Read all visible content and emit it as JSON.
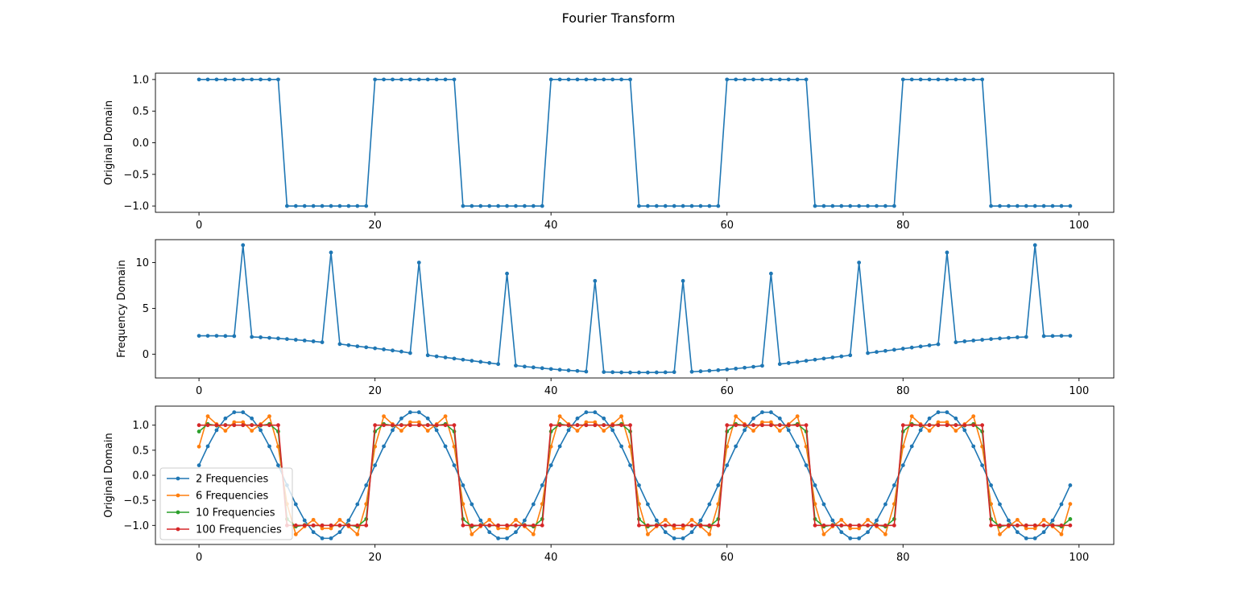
{
  "figure": {
    "title": "Fourier Transform"
  },
  "chart_data": [
    {
      "type": "line",
      "ylabel": "Original Domain",
      "xlim": [
        -4.95,
        103.95
      ],
      "ylim": [
        -1.1,
        1.1
      ],
      "xticks": [
        0,
        20,
        40,
        60,
        80,
        100
      ],
      "xtick_labels": [
        "0",
        "20",
        "40",
        "60",
        "80",
        "100"
      ],
      "yticks": [
        1.0,
        0.5,
        0.0,
        -0.5,
        -1.0
      ],
      "ytick_labels": [
        "1.0",
        "0.5",
        "0.0",
        "−0.5",
        "−1.0"
      ],
      "legend": false,
      "series": [
        {
          "color": "#1f77b4",
          "x_start": 0,
          "x_step": 1,
          "period": 20,
          "duty": 10,
          "high": 1.0,
          "low": -1.0,
          "count": 100
        }
      ]
    },
    {
      "type": "line",
      "ylabel": "Frequency Domain",
      "xlim": [
        -4.95,
        103.95
      ],
      "ylim": [
        -2.6,
        12.5
      ],
      "xticks": [
        0,
        20,
        40,
        60,
        80,
        100
      ],
      "xtick_labels": [
        "0",
        "20",
        "40",
        "60",
        "80",
        "100"
      ],
      "yticks": [
        10,
        5,
        0
      ],
      "ytick_labels": [
        "10",
        "5",
        "0"
      ],
      "legend": false,
      "series": [
        {
          "color": "#1f77b4",
          "values": [
            2.0,
            2.0,
            2.0,
            1.98,
            1.97,
            11.9,
            1.88,
            1.84,
            1.78,
            1.72,
            1.65,
            1.57,
            1.49,
            1.4,
            1.3,
            11.1,
            1.1,
            0.98,
            0.86,
            0.75,
            0.64,
            0.52,
            0.4,
            0.28,
            0.12,
            10.0,
            -0.12,
            -0.24,
            -0.36,
            -0.48,
            -0.6,
            -0.72,
            -0.84,
            -0.96,
            -1.08,
            8.8,
            -1.25,
            -1.35,
            -1.44,
            -1.53,
            -1.62,
            -1.7,
            -1.77,
            -1.83,
            -1.9,
            8.0,
            -1.95,
            -1.97,
            -1.99,
            -2.0,
            -2.0,
            -2.0,
            -1.99,
            -1.98,
            -1.96,
            8.0,
            -1.92,
            -1.87,
            -1.81,
            -1.75,
            -1.67,
            -1.58,
            -1.48,
            -1.38,
            -1.27,
            8.8,
            -1.08,
            -0.97,
            -0.85,
            -0.72,
            -0.6,
            -0.48,
            -0.36,
            -0.24,
            -0.12,
            10.0,
            0.12,
            0.24,
            0.36,
            0.48,
            0.6,
            0.72,
            0.84,
            0.96,
            1.08,
            11.1,
            1.3,
            1.4,
            1.49,
            1.57,
            1.65,
            1.72,
            1.78,
            1.84,
            1.88,
            11.9,
            1.97,
            1.98,
            2.0,
            2.0
          ]
        }
      ]
    },
    {
      "type": "line",
      "ylabel": "Original Domain",
      "xlim": [
        -4.95,
        103.95
      ],
      "ylim": [
        -1.38,
        1.38
      ],
      "xticks": [
        0,
        20,
        40,
        60,
        80,
        100
      ],
      "xtick_labels": [
        "0",
        "20",
        "40",
        "60",
        "80",
        "100"
      ],
      "yticks": [
        1.0,
        0.5,
        0.0,
        -0.5,
        -1.0
      ],
      "ytick_labels": [
        "1.0",
        "0.5",
        "0.0",
        "−0.5",
        "−1.0"
      ],
      "legend": true,
      "legend_position": "lower left",
      "series": [
        {
          "name": "2 Frequencies",
          "color": "#1f77b4",
          "harmonics": 1,
          "count": 100,
          "period": 20
        },
        {
          "name": "6 Frequencies",
          "color": "#ff7f0e",
          "harmonics": 3,
          "count": 100,
          "period": 20
        },
        {
          "name": "10 Frequencies",
          "color": "#2ca02c",
          "harmonics": 5,
          "count": 100,
          "period": 20
        },
        {
          "name": "100 Frequencies",
          "color": "#d62728",
          "harmonics": 0,
          "count": 100,
          "period": 20
        }
      ]
    }
  ]
}
